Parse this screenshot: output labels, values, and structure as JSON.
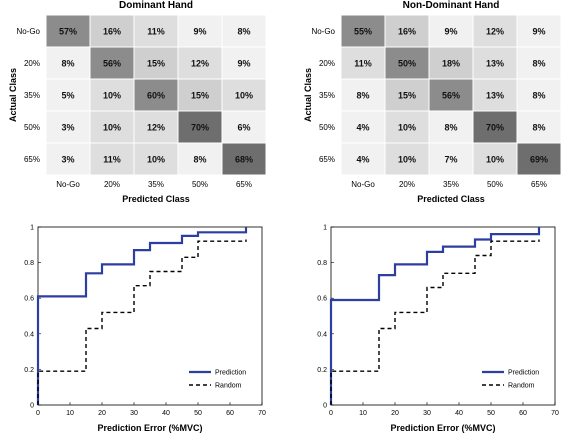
{
  "chart_data": [
    {
      "type": "heatmap",
      "title": "Dominant Hand",
      "xlabel": "Predicted Class",
      "ylabel": "Actual Class",
      "x_categories": [
        "No-Go",
        "20%",
        "35%",
        "50%",
        "65%"
      ],
      "y_categories": [
        "No-Go",
        "20%",
        "35%",
        "50%",
        "65%"
      ],
      "values": [
        [
          57,
          16,
          11,
          9,
          8
        ],
        [
          8,
          56,
          15,
          12,
          9
        ],
        [
          5,
          10,
          60,
          15,
          10
        ],
        [
          3,
          10,
          12,
          70,
          6
        ],
        [
          3,
          11,
          10,
          8,
          68
        ]
      ],
      "value_suffix": "%"
    },
    {
      "type": "heatmap",
      "title": "Non-Dominant Hand",
      "xlabel": "Predicted Class",
      "ylabel": "Actual Class",
      "x_categories": [
        "No-Go",
        "20%",
        "35%",
        "50%",
        "65%"
      ],
      "y_categories": [
        "No-Go",
        "20%",
        "35%",
        "50%",
        "65%"
      ],
      "values": [
        [
          55,
          16,
          9,
          12,
          9
        ],
        [
          11,
          50,
          18,
          13,
          8
        ],
        [
          8,
          15,
          56,
          13,
          8
        ],
        [
          4,
          10,
          8,
          70,
          8
        ],
        [
          4,
          10,
          7,
          10,
          69
        ]
      ],
      "value_suffix": "%"
    },
    {
      "type": "line",
      "xlabel": "Prediction Error (%MVC)",
      "ylabel": "",
      "xlim": [
        0,
        70
      ],
      "ylim": [
        0,
        1
      ],
      "x_ticks": [
        0,
        10,
        20,
        30,
        40,
        50,
        60,
        70
      ],
      "y_ticks": [
        0,
        0.2,
        0.4,
        0.6,
        0.8,
        1
      ],
      "legend_position": "bottom-right",
      "series": [
        {
          "name": "Prediction",
          "style": "solid",
          "color": "#2c3fa0",
          "x": [
            0,
            0,
            15,
            15,
            20,
            20,
            30,
            30,
            35,
            35,
            45,
            45,
            50,
            50,
            65,
            65
          ],
          "y": [
            0,
            0.61,
            0.61,
            0.74,
            0.74,
            0.79,
            0.79,
            0.87,
            0.87,
            0.91,
            0.91,
            0.95,
            0.95,
            0.97,
            0.97,
            1.0
          ]
        },
        {
          "name": "Random",
          "style": "dashed",
          "color": "#000000",
          "x": [
            0,
            0,
            15,
            15,
            20,
            20,
            30,
            30,
            35,
            35,
            45,
            45,
            50,
            50,
            65,
            65
          ],
          "y": [
            0,
            0.19,
            0.19,
            0.43,
            0.43,
            0.52,
            0.52,
            0.67,
            0.67,
            0.75,
            0.75,
            0.83,
            0.83,
            0.92,
            0.92,
            0.93
          ]
        }
      ]
    },
    {
      "type": "line",
      "xlabel": "Prediction Error (%MVC)",
      "ylabel": "",
      "xlim": [
        0,
        70
      ],
      "ylim": [
        0,
        1
      ],
      "x_ticks": [
        0,
        10,
        20,
        30,
        40,
        50,
        60,
        70
      ],
      "y_ticks": [
        0,
        0.2,
        0.4,
        0.6,
        0.8,
        1
      ],
      "legend_position": "bottom-right",
      "series": [
        {
          "name": "Prediction",
          "style": "solid",
          "color": "#2c3fa0",
          "x": [
            0,
            0,
            15,
            15,
            20,
            20,
            30,
            30,
            35,
            35,
            45,
            45,
            50,
            50,
            65,
            65
          ],
          "y": [
            0,
            0.59,
            0.59,
            0.73,
            0.73,
            0.79,
            0.79,
            0.86,
            0.86,
            0.89,
            0.89,
            0.93,
            0.93,
            0.96,
            0.96,
            1.0
          ]
        },
        {
          "name": "Random",
          "style": "dashed",
          "color": "#000000",
          "x": [
            0,
            0,
            15,
            15,
            20,
            20,
            30,
            30,
            35,
            35,
            45,
            45,
            50,
            50,
            65,
            65
          ],
          "y": [
            0,
            0.19,
            0.19,
            0.43,
            0.43,
            0.52,
            0.52,
            0.66,
            0.66,
            0.74,
            0.74,
            0.84,
            0.84,
            0.92,
            0.92,
            0.93
          ]
        }
      ]
    }
  ]
}
